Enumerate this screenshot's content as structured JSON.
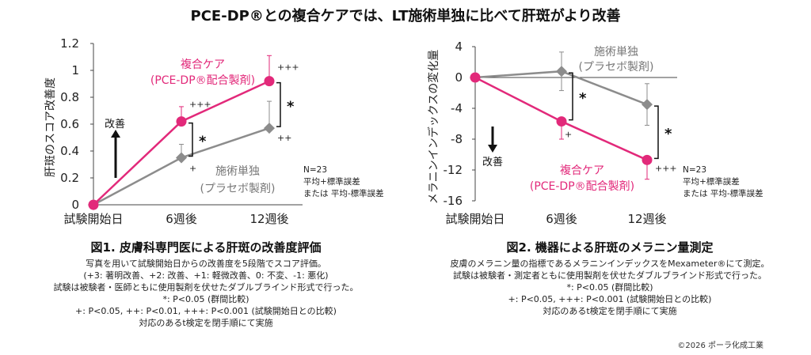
{
  "main_title": "PCE-DP®との複合ケアでは、LT施術単独に比べて肝斑がより改善",
  "colors": {
    "combo": "#e2297a",
    "placebo": "#8c8c8c",
    "axis": "#444444",
    "text": "#222222"
  },
  "chart_data": [
    {
      "type": "line",
      "title": "",
      "ylabel": "肝斑のスコア改善度",
      "xlabel": "",
      "categories": [
        "試験開始日",
        "6週後",
        "12週後"
      ],
      "ylim": [
        0,
        1.2
      ],
      "yticks": [
        "0",
        "0.2",
        "0.4",
        "0.6",
        "0.8",
        "1",
        "1.2"
      ],
      "grid": false,
      "series": [
        {
          "name": "複合ケア(PCE-DP®配合製剤)",
          "values": [
            0,
            0.62,
            0.92
          ],
          "error": [
            0,
            0.11,
            0.19
          ],
          "marker": "circle",
          "sig": [
            "",
            "+++",
            "+++"
          ]
        },
        {
          "name": "施術単独(プラセボ製剤)",
          "values": [
            0,
            0.35,
            0.57
          ],
          "error": [
            0,
            0.1,
            0.2
          ],
          "marker": "diamond",
          "sig": [
            "",
            "+",
            "++"
          ]
        }
      ],
      "group_sig": [
        "",
        "*",
        "*"
      ],
      "arrow_label": "改善",
      "arrow_direction": "up",
      "legend_label_combo": [
        "複合ケア",
        "(PCE-DP®配合製剤)"
      ],
      "legend_label_placebo": [
        "施術単独",
        "(プラセボ製剤)"
      ],
      "note": [
        "N=23",
        "平均+標準誤差",
        "または 平均-標準誤差"
      ]
    },
    {
      "type": "line",
      "title": "",
      "ylabel": "メラニンインデックスの変化量",
      "xlabel": "",
      "categories": [
        "試験開始日",
        "6週後",
        "12週後"
      ],
      "ylim": [
        -16,
        4
      ],
      "yticks": [
        "4",
        "0",
        "-4",
        "-8",
        "-12",
        "-16"
      ],
      "grid": false,
      "series": [
        {
          "name": "複合ケア(PCE-DP®配合製剤)",
          "values": [
            0,
            -5.7,
            -10.7
          ],
          "error": [
            0,
            2.3,
            2.5
          ],
          "marker": "circle",
          "sig": [
            "",
            "+",
            "+++"
          ]
        },
        {
          "name": "施術単独(プラセボ製剤)",
          "values": [
            0,
            0.8,
            -3.5
          ],
          "error": [
            0,
            2.5,
            2.7
          ],
          "marker": "diamond",
          "sig": [
            "",
            "",
            ""
          ]
        }
      ],
      "group_sig": [
        "",
        "*",
        "*"
      ],
      "arrow_label": "改善",
      "arrow_direction": "down",
      "legend_label_combo": [
        "複合ケア",
        "(PCE-DP®配合製剤)"
      ],
      "legend_label_placebo": [
        "施術単独",
        "(プラセボ製剤)"
      ],
      "note": [
        "N=23",
        "平均+標準誤差",
        "または 平均-標準誤差"
      ]
    }
  ],
  "fig1": {
    "title": "図1. 皮膚科専門医による肝斑の改善度評価",
    "lines": [
      "写真を用いて試験開始日からの改善度を5段階でスコア評価。",
      "(+3: 著明改善、+2: 改善、+1: 軽微改善、0: 不変、-1: 悪化)",
      "試験は被験者・医師ともに使用製剤を伏せたダブルブラインド形式で行った。",
      "*: P<0.05 (群間比較)",
      "+: P<0.05, ++: P<0.01, +++: P<0.001 (試験開始日との比較)",
      "対応のあるt検定を閉手順にて実施"
    ]
  },
  "fig2": {
    "title": "図2. 機器による肝斑のメラニン量測定",
    "lines": [
      "皮膚のメラニン量の指標であるメラニンインデックスをMexameter®にて測定。",
      "試験は被験者・測定者ともに使用製剤を伏せたダブルブラインド形式で行った。",
      "*: P<0.05 (群間比較)",
      "+: P<0.05, +++: P<0.001 (試験開始日との比較)",
      "対応のあるt検定を閉手順にて実施"
    ]
  },
  "copyright": "©2026 ポーラ化成工業"
}
